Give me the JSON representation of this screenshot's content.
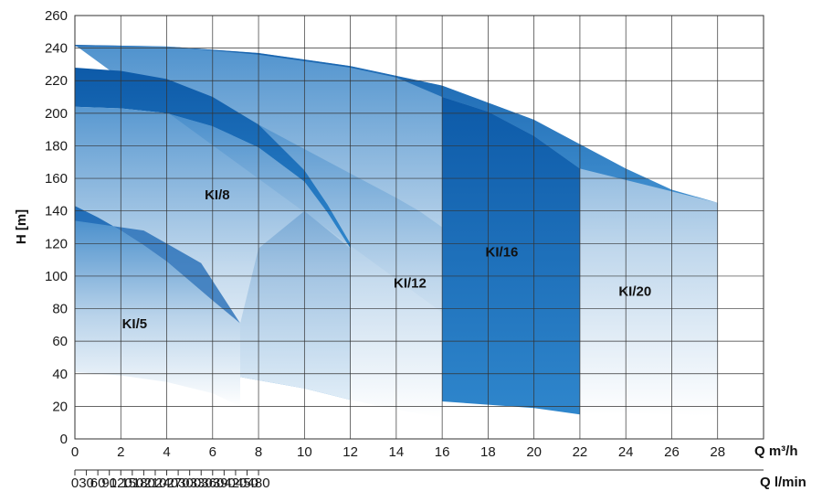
{
  "chart_data": {
    "type": "area",
    "title": "",
    "xlabel": "Q m³/h",
    "x2label": "Q l/min",
    "ylabel": "H [m]",
    "xlim": [
      0,
      30
    ],
    "ylim": [
      0,
      260
    ],
    "x_ticks": [
      0,
      2,
      4,
      6,
      8,
      10,
      12,
      14,
      16,
      18,
      20,
      22,
      24,
      26,
      28
    ],
    "x_ticks_show_values": [
      0,
      2,
      4,
      6,
      8,
      10,
      12,
      14,
      16,
      18,
      20,
      22,
      24,
      26,
      28
    ],
    "x2_ticks": [
      0,
      30,
      60,
      90,
      120,
      150,
      180,
      210,
      240,
      270,
      300,
      330,
      360,
      390,
      420,
      450,
      480
    ],
    "y_ticks": [
      0,
      20,
      40,
      60,
      80,
      100,
      120,
      140,
      160,
      180,
      200,
      220,
      240,
      260
    ],
    "grid": true,
    "colors": {
      "band": "#1565b4",
      "fade": "#ffffff",
      "grid": "#333333"
    },
    "series": [
      {
        "name": "KI/5",
        "label": "KI/5",
        "label_at": [
          2.6,
          68
        ],
        "upper": [
          [
            0,
            143
          ],
          [
            1,
            136
          ],
          [
            2,
            128
          ],
          [
            3,
            119
          ],
          [
            4,
            109
          ],
          [
            5,
            97
          ],
          [
            6,
            85
          ],
          [
            7.2,
            71
          ]
        ],
        "lower": [
          [
            0,
            41
          ],
          [
            2,
            39
          ],
          [
            4,
            35
          ],
          [
            6,
            28
          ],
          [
            7.2,
            20
          ]
        ]
      },
      {
        "name": "KI/8",
        "label": "KI/8",
        "label_at": [
          6.2,
          147
        ],
        "upper": [
          [
            0,
            228
          ],
          [
            2,
            226
          ],
          [
            4,
            221
          ],
          [
            6,
            210
          ],
          [
            8,
            193
          ],
          [
            10,
            165
          ],
          [
            11,
            144
          ],
          [
            12,
            120
          ]
        ],
        "lower": [
          [
            0,
            204
          ],
          [
            2,
            203
          ],
          [
            4,
            200
          ],
          [
            6,
            192
          ],
          [
            8,
            179
          ],
          [
            10,
            158
          ],
          [
            11,
            139
          ],
          [
            12,
            117
          ]
        ],
        "bottom": [
          [
            7.2,
            38
          ],
          [
            8,
            36
          ],
          [
            10,
            31
          ],
          [
            12,
            24
          ]
        ]
      },
      {
        "name": "KI/12",
        "label": "KI/12",
        "label_at": [
          14.6,
          93
        ],
        "upper": [
          [
            6,
            209
          ],
          [
            8,
            193
          ],
          [
            10,
            178
          ],
          [
            12,
            163
          ],
          [
            14,
            148
          ],
          [
            15,
            140
          ],
          [
            16,
            130
          ]
        ],
        "lower": [
          [
            12,
            24
          ],
          [
            14,
            18
          ],
          [
            16,
            13
          ]
        ]
      },
      {
        "name": "KI/16",
        "label": "KI/16",
        "label_at": [
          18.6,
          112
        ],
        "upper": [
          [
            0,
            241
          ],
          [
            4,
            241
          ],
          [
            8,
            236
          ],
          [
            12,
            228
          ],
          [
            14,
            222
          ],
          [
            16,
            210
          ],
          [
            18,
            201
          ],
          [
            20,
            186
          ],
          [
            22,
            166
          ],
          [
            22,
            146
          ]
        ],
        "lower": [
          [
            16,
            23
          ],
          [
            18,
            21
          ],
          [
            20,
            19
          ],
          [
            22,
            15
          ]
        ]
      },
      {
        "name": "KI/20",
        "label": "KI/20",
        "label_at": [
          24.4,
          88
        ],
        "upper": [
          [
            0,
            242
          ],
          [
            4,
            241
          ],
          [
            8,
            237
          ],
          [
            12,
            229
          ],
          [
            16,
            217
          ],
          [
            20,
            196
          ],
          [
            22,
            181
          ],
          [
            24,
            166
          ],
          [
            26,
            153
          ],
          [
            28,
            145
          ]
        ],
        "lower": [
          [
            22,
            16
          ],
          [
            24,
            16
          ],
          [
            26,
            15
          ],
          [
            28,
            14
          ]
        ]
      }
    ]
  }
}
